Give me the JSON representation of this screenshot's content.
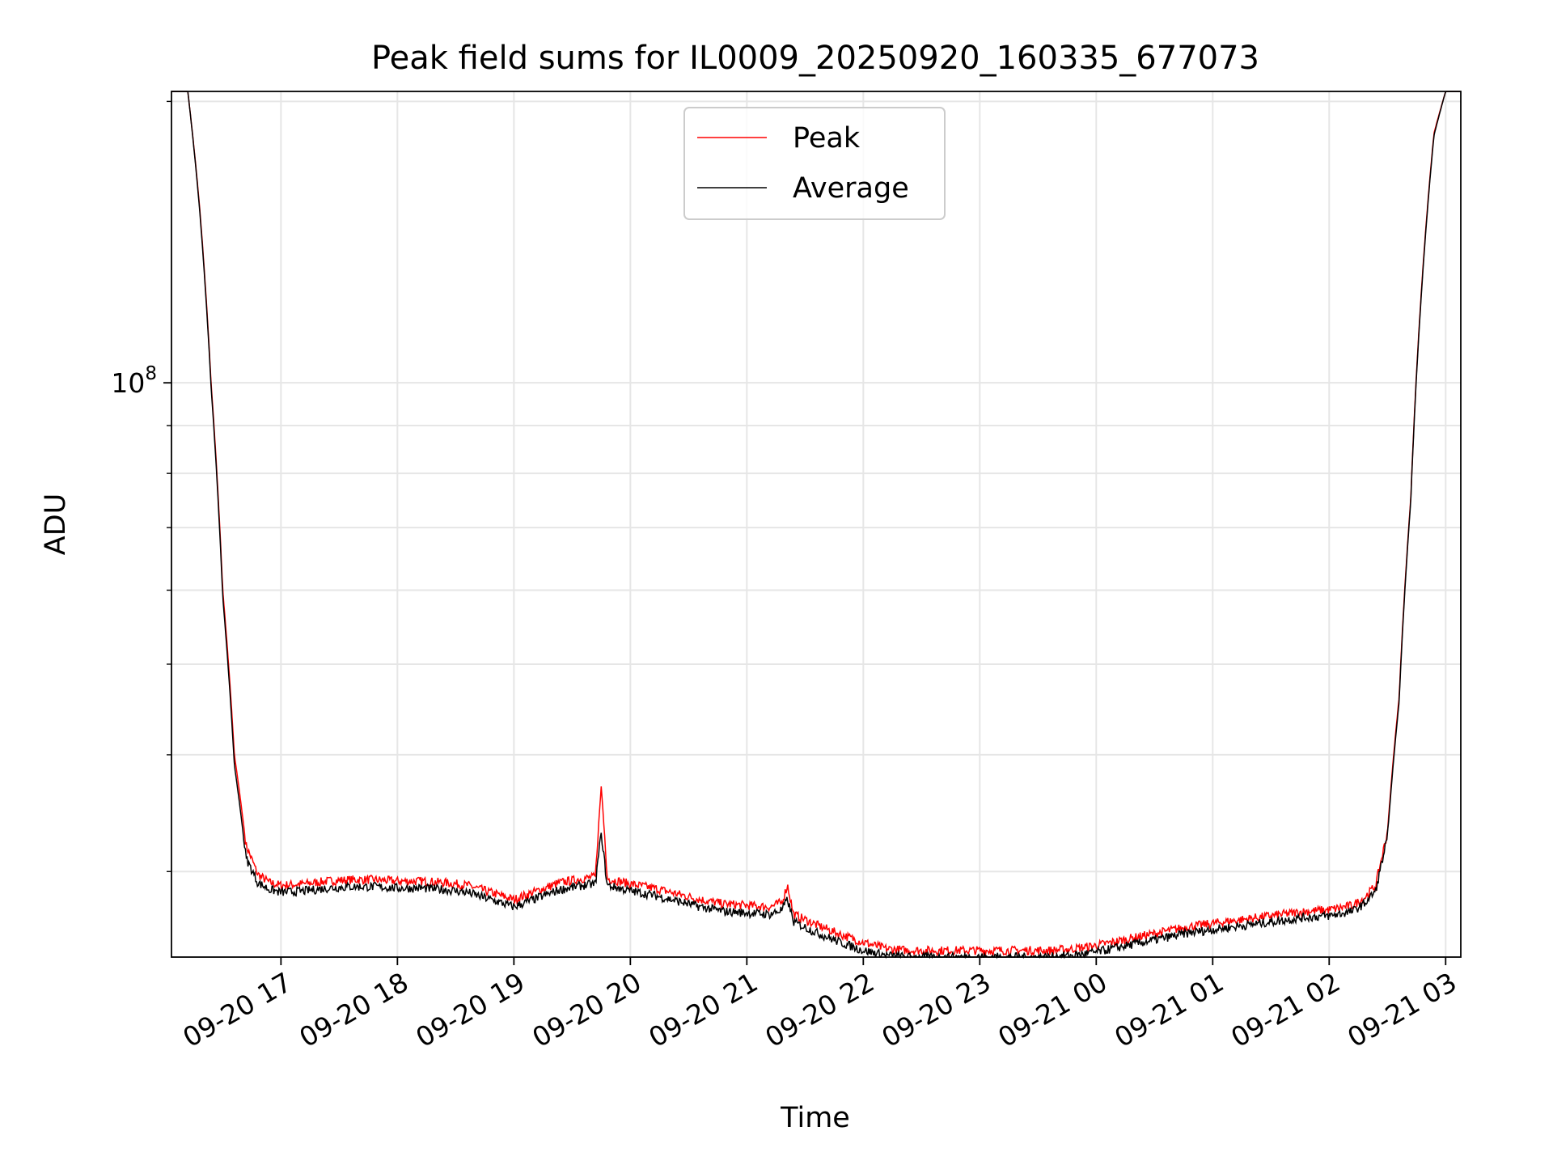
{
  "chart_data": {
    "type": "line",
    "title": "Peak field sums for IL0009_20250920_160335_677073",
    "xlabel": "Time",
    "ylabel": "ADU",
    "yscale": "log",
    "grid": true,
    "legend_position": "upper center",
    "x_unit": "hours since 09-20 16:00",
    "xlim": [
      0.06,
      11.13
    ],
    "ylim": [
      24300000.0,
      205000000.0
    ],
    "x_ticks": [
      {
        "x": 1,
        "label": "09-20 17"
      },
      {
        "x": 2,
        "label": "09-20 18"
      },
      {
        "x": 3,
        "label": "09-20 19"
      },
      {
        "x": 4,
        "label": "09-20 20"
      },
      {
        "x": 5,
        "label": "09-20 21"
      },
      {
        "x": 6,
        "label": "09-20 22"
      },
      {
        "x": 7,
        "label": "09-20 23"
      },
      {
        "x": 8,
        "label": "09-21 00"
      },
      {
        "x": 9,
        "label": "09-21 01"
      },
      {
        "x": 10,
        "label": "09-21 02"
      },
      {
        "x": 11,
        "label": "09-21 03"
      }
    ],
    "y_major_ticks": [
      {
        "value": 100000000,
        "base": "10",
        "exp": "8"
      }
    ],
    "y_minor_ticks": [
      30000000,
      40000000,
      50000000,
      60000000,
      70000000,
      80000000,
      90000000,
      200000000
    ],
    "series": [
      {
        "name": "Peak",
        "color": "#ff0000",
        "x": [
          0.06,
          0.2,
          0.3,
          0.4,
          0.5,
          0.6,
          0.7,
          0.8,
          0.9,
          1.0,
          1.2,
          1.4,
          1.6,
          1.8,
          2.0,
          2.2,
          2.4,
          2.6,
          2.8,
          3.0,
          3.2,
          3.4,
          3.6,
          3.7,
          3.75,
          3.8,
          4.0,
          4.2,
          4.4,
          4.6,
          4.8,
          5.0,
          5.2,
          5.3,
          5.35,
          5.4,
          5.6,
          5.8,
          6.0,
          6.2,
          6.4,
          6.6,
          6.8,
          7.0,
          7.2,
          7.4,
          7.6,
          7.8,
          8.0,
          8.2,
          8.4,
          8.6,
          8.8,
          9.0,
          9.2,
          9.4,
          9.6,
          9.8,
          10.0,
          10.2,
          10.3,
          10.4,
          10.5,
          10.6,
          10.7,
          10.8,
          10.9,
          11.0,
          11.13
        ],
        "y": [
          205000000.0,
          205000000.0,
          155000000.0,
          100000000.0,
          60000000.0,
          40000000.0,
          32000000.0,
          29800000.0,
          29200000.0,
          29000000.0,
          29100000.0,
          29300000.0,
          29400000.0,
          29400000.0,
          29300000.0,
          29300000.0,
          29200000.0,
          29000000.0,
          28500000.0,
          28000000.0,
          28600000.0,
          29200000.0,
          29500000.0,
          29600000.0,
          37000000.0,
          29500000.0,
          29100000.0,
          28800000.0,
          28400000.0,
          28000000.0,
          27700000.0,
          27600000.0,
          27500000.0,
          27800000.0,
          29000000.0,
          27000000.0,
          26300000.0,
          25700000.0,
          25200000.0,
          24800000.0,
          24700000.0,
          24700000.0,
          24700000.0,
          24700000.0,
          24700000.0,
          24700000.0,
          24700000.0,
          24800000.0,
          25000000.0,
          25300000.0,
          25600000.0,
          25900000.0,
          26200000.0,
          26400000.0,
          26600000.0,
          26800000.0,
          27000000.0,
          27200000.0,
          27300000.0,
          27600000.0,
          28100000.0,
          29000000.0,
          33000000.0,
          46000000.0,
          75000000.0,
          130000000.0,
          185000000.0,
          205000000.0,
          205000000.0
        ]
      },
      {
        "name": "Average",
        "color": "#000000",
        "x": [
          0.06,
          0.2,
          0.3,
          0.4,
          0.5,
          0.6,
          0.7,
          0.8,
          0.9,
          1.0,
          1.2,
          1.4,
          1.6,
          1.8,
          2.0,
          2.2,
          2.4,
          2.6,
          2.8,
          3.0,
          3.2,
          3.4,
          3.6,
          3.7,
          3.75,
          3.8,
          4.0,
          4.2,
          4.4,
          4.6,
          4.8,
          5.0,
          5.2,
          5.3,
          5.35,
          5.4,
          5.6,
          5.8,
          6.0,
          6.2,
          6.4,
          6.6,
          6.8,
          7.0,
          7.2,
          7.4,
          7.6,
          7.8,
          8.0,
          8.2,
          8.4,
          8.6,
          8.8,
          9.0,
          9.2,
          9.4,
          9.6,
          9.8,
          10.0,
          10.2,
          10.3,
          10.4,
          10.5,
          10.6,
          10.7,
          10.8,
          10.9,
          11.0,
          11.13
        ],
        "y": [
          205000000.0,
          205000000.0,
          154000000.0,
          99000000.0,
          59000000.0,
          39000000.0,
          31000000.0,
          29200000.0,
          28700000.0,
          28500000.0,
          28600000.0,
          28800000.0,
          28900000.0,
          28900000.0,
          28800000.0,
          28800000.0,
          28700000.0,
          28500000.0,
          28000000.0,
          27500000.0,
          28100000.0,
          28700000.0,
          29000000.0,
          29100000.0,
          33000000.0,
          29000000.0,
          28600000.0,
          28300000.0,
          27900000.0,
          27500000.0,
          27200000.0,
          27100000.0,
          27000000.0,
          27300000.0,
          28000000.0,
          26500000.0,
          25800000.0,
          25200000.0,
          24700000.0,
          24400000.0,
          24300000.0,
          24300000.0,
          24300000.0,
          24300000.0,
          24300000.0,
          24300000.0,
          24300000.0,
          24400000.0,
          24600000.0,
          24900000.0,
          25200000.0,
          25500000.0,
          25800000.0,
          26000000.0,
          26200000.0,
          26400000.0,
          26600000.0,
          26800000.0,
          26900000.0,
          27200000.0,
          27700000.0,
          28600000.0,
          32600000.0,
          45500000.0,
          74500000.0,
          129000000.0,
          184000000.0,
          205000000.0,
          205000000.0
        ]
      }
    ]
  }
}
